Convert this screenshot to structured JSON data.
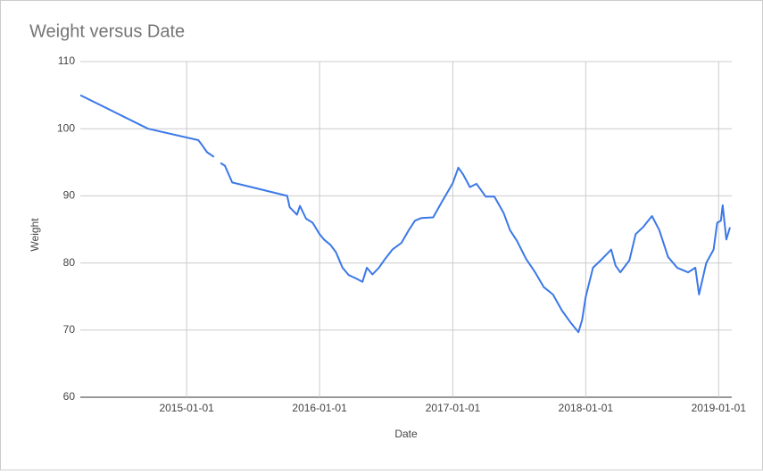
{
  "chart_data": {
    "type": "line",
    "title": "Weight versus Date",
    "x_label": "Date",
    "y_label": "Weight",
    "x": [
      "2014-03-15",
      "2014-09-17",
      "2015-02-02",
      "2015-02-09",
      "2015-02-26",
      "2015-03-17",
      null,
      "2015-04-04",
      "2015-04-16",
      "2015-05-06",
      "2015-10-04",
      "2015-10-11",
      "2015-10-31",
      "2015-11-08",
      "2015-11-25",
      "2015-12-13",
      "2016-01-01",
      "2016-01-13",
      "2016-01-31",
      "2016-02-15",
      "2016-03-04",
      "2016-03-21",
      "2016-04-10",
      "2016-04-28",
      "2016-05-10",
      "2016-05-25",
      "2016-06-12",
      "2016-06-29",
      "2016-07-19",
      "2016-08-13",
      "2016-09-02",
      "2016-09-19",
      "2016-10-07",
      "2016-11-08",
      "2016-12-03",
      "2017-01-01",
      "2017-01-16",
      "2017-01-29",
      "2017-02-17",
      "2017-03-07",
      "2017-04-01",
      "2017-04-25",
      "2017-05-20",
      "2017-06-07",
      "2017-06-26",
      "2017-07-21",
      "2017-08-15",
      "2017-09-08",
      "2017-10-03",
      "2017-10-28",
      "2017-11-22",
      "2017-12-12",
      "2017-12-22",
      "2018-01-01",
      "2018-01-21",
      "2018-02-15",
      "2018-03-12",
      "2018-03-24",
      "2018-04-06",
      "2018-05-01",
      "2018-05-18",
      "2018-06-07",
      "2018-07-02",
      "2018-07-22",
      "2018-08-15",
      "2018-09-09",
      "2018-10-09",
      "2018-10-29",
      "2018-11-08",
      "2018-11-28",
      "2018-12-18",
      "2018-12-28",
      "2019-01-07",
      "2019-01-12",
      "2019-01-22",
      "2019-02-01"
    ],
    "series": [
      {
        "name": "Weight",
        "color": "#3b78e7",
        "values": [
          105,
          100,
          98.3,
          97.8,
          96.5,
          95.8,
          null,
          94.9,
          94.5,
          92,
          90,
          88.3,
          87.2,
          88.5,
          86.6,
          86,
          84.3,
          83.5,
          82.7,
          81.6,
          79.3,
          78.2,
          77.7,
          77.2,
          79.3,
          78.3,
          79.3,
          80.6,
          82,
          83,
          84.9,
          86.3,
          86.7,
          86.8,
          89.2,
          91.9,
          94.2,
          93.2,
          91.3,
          91.8,
          89.9,
          89.9,
          87.5,
          84.9,
          83.3,
          80.6,
          78.6,
          76.4,
          75.3,
          72.9,
          71,
          69.7,
          71.5,
          75,
          79.3,
          80.6,
          82,
          79.6,
          78.6,
          80.4,
          84.3,
          85.3,
          87,
          84.9,
          80.9,
          79.3,
          78.6,
          79.3,
          75.3,
          80,
          82,
          86,
          86.3,
          88.6,
          83.5,
          85.3
        ]
      }
    ],
    "xlim": [
      "2014-03-15",
      "2019-02-06"
    ],
    "xticks": [
      "2015-01-01",
      "2016-01-01",
      "2017-01-01",
      "2018-01-01",
      "2019-01-01"
    ],
    "ylim": [
      60,
      110
    ],
    "yticks": [
      60,
      70,
      80,
      90,
      100,
      110
    ],
    "grid": true
  }
}
